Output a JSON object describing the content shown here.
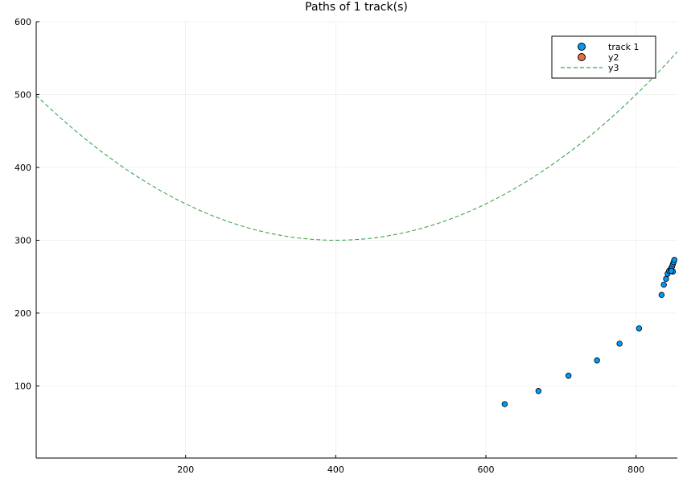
{
  "chart_data": {
    "type": "scatter",
    "title": "Paths of 1 track(s)",
    "xlabel": "",
    "ylabel": "",
    "xlim": [
      1,
      855
    ],
    "ylim": [
      1,
      600
    ],
    "xticks": [
      200,
      400,
      600,
      800
    ],
    "yticks": [
      100,
      200,
      300,
      400,
      500,
      600
    ],
    "grid": true,
    "legend_position": "top-right",
    "series": [
      {
        "name": "track 1",
        "kind": "scatter",
        "color": "#009AFA",
        "points": [
          [
            625,
            75
          ],
          [
            670,
            93
          ],
          [
            710,
            114
          ],
          [
            748,
            135
          ],
          [
            778,
            158
          ],
          [
            804,
            179
          ],
          [
            834,
            225
          ],
          [
            837,
            239
          ],
          [
            840,
            247
          ],
          [
            842,
            254
          ],
          [
            844,
            258
          ],
          [
            846,
            260
          ],
          [
            847,
            262
          ],
          [
            848,
            264
          ],
          [
            849,
            267
          ],
          [
            850,
            270
          ],
          [
            851,
            273
          ],
          [
            849,
            257
          ],
          [
            847,
            258
          ]
        ]
      },
      {
        "name": "y2",
        "kind": "scatter",
        "color": "#E36F47",
        "points": []
      },
      {
        "name": "y3",
        "kind": "line",
        "style": "dashed",
        "color": "#3EA44E",
        "curve": {
          "form": "parabola",
          "vertex": [
            400,
            300
          ],
          "coefficient": 0.00125
        },
        "x_range": [
          1,
          855
        ]
      }
    ]
  }
}
